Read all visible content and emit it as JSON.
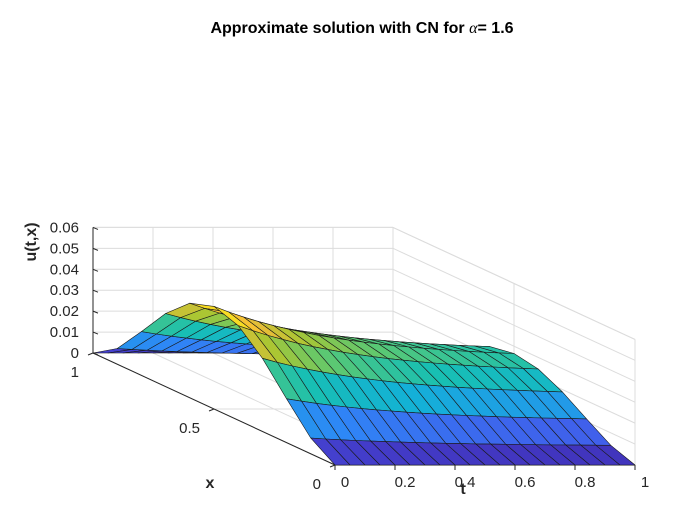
{
  "chart_data": {
    "type": "surface",
    "title_prefix": "Approximate solution with CN for ",
    "title_symbol": "α",
    "title_suffix": "= 1.6",
    "xlabel": "t",
    "ylabel": "x",
    "zlabel": "u(t,x)",
    "t_range": [
      0,
      1
    ],
    "x_range": [
      0,
      1
    ],
    "z_range": [
      0,
      0.06
    ],
    "t_ticks": [
      "0",
      "0.2",
      "0.4",
      "0.6",
      "0.8",
      "1"
    ],
    "x_ticks": [
      "0",
      "0.5",
      "1"
    ],
    "z_ticks": [
      "0",
      "0.01",
      "0.02",
      "0.03",
      "0.04",
      "0.05",
      "0.06"
    ],
    "grid": true,
    "colormap": "parula",
    "t_grid_points": 21,
    "x_grid_points": 11,
    "peak_value": 0.049,
    "surface_values_at_x_0.5": {
      "t": [
        0,
        0.1,
        0.2,
        0.3,
        0.4,
        0.5,
        0.6,
        0.7,
        0.8,
        0.9,
        1.0
      ],
      "u": [
        0.049,
        0.046,
        0.042,
        0.038,
        0.035,
        0.032,
        0.03,
        0.028,
        0.027,
        0.025,
        0.024
      ]
    }
  }
}
